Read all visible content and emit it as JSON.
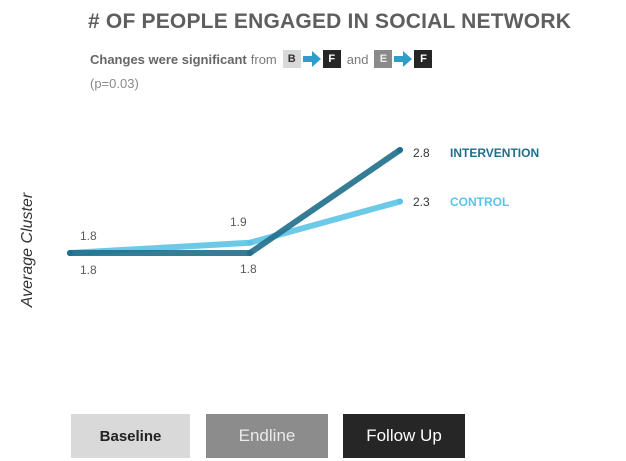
{
  "chart_data": {
    "type": "line",
    "title": "# OF PEOPLE ENGAGED IN SOCIAL NETWORK",
    "subtitle": {
      "bold": "Changes were significant",
      "from": "from",
      "and": "and",
      "comparisons": [
        [
          "B",
          "F"
        ],
        [
          "E",
          "F"
        ]
      ],
      "pvalue": "(p=0.03)"
    },
    "ylabel": "Average Cluster",
    "categories": [
      "Baseline",
      "Endline",
      "Follow Up"
    ],
    "series": [
      {
        "name": "INTERVENTION",
        "values": [
          1.8,
          1.8,
          2.8
        ],
        "labels": [
          "1.8",
          "1.8",
          "2.8"
        ],
        "color": "#1f6f8b"
      },
      {
        "name": "CONTROL",
        "values": [
          1.8,
          1.9,
          2.3
        ],
        "labels": [
          "1.8",
          "1.9",
          "2.3"
        ],
        "color": "#5cc3e6"
      }
    ],
    "category_colors": [
      "#d9d9d9",
      "#8c8c8c",
      "#262626"
    ],
    "grid": false,
    "legend": "right"
  }
}
